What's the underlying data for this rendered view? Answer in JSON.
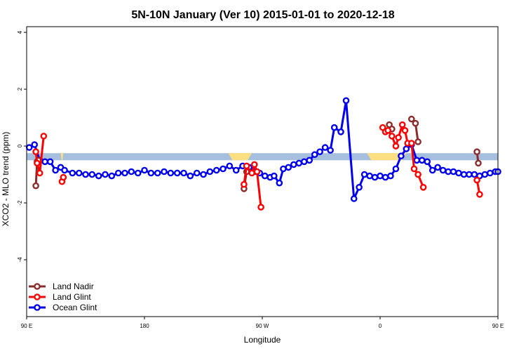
{
  "chart_data": {
    "type": "line",
    "title": "5N-10N January (Ver 10)   2015-01-01 to 2020-12-18",
    "xlabel": "Longitude",
    "ylabel": "XCO2 - MLO trend (ppm)",
    "xlim": [
      90,
      450
    ],
    "ylim": [
      -6,
      4.2
    ],
    "xticks": [
      {
        "value": 90,
        "label": "90 E"
      },
      {
        "value": 180,
        "label": "180"
      },
      {
        "value": 270,
        "label": "90 W"
      },
      {
        "value": 360,
        "label": "0"
      },
      {
        "value": 450,
        "label": "90 E"
      },
      {
        "value": 540,
        "label": "180"
      }
    ],
    "yticks": [
      {
        "value": 4,
        "label": "4"
      },
      {
        "value": 2,
        "label": "2"
      },
      {
        "value": 0,
        "label": "0"
      },
      {
        "value": -2,
        "label": "-2"
      },
      {
        "value": -4,
        "label": "-4"
      }
    ],
    "grid": false,
    "legend_position": "bottom-left",
    "land_band": {
      "y_range": [
        -0.5,
        -0.25
      ],
      "color": "#a7bfde",
      "land_color": "#fcdf80",
      "land_segments": [
        [
          116,
          118
        ],
        [
          244,
          262
        ],
        [
          350,
          380
        ],
        [
          490,
          492
        ]
      ]
    },
    "series": [
      {
        "name": "Land Nadir",
        "color": "#8b2c2c",
        "segments": [
          [
            [
              97,
              -1.4
            ],
            [
              98,
              -0.55
            ],
            [
              99,
              -0.5
            ]
          ],
          [
            [
              256,
              -1.5
            ],
            [
              258,
              -0.9
            ]
          ],
          [
            [
              367,
              0.75
            ],
            [
              369,
              0.6
            ]
          ],
          [
            [
              384,
              0.95
            ],
            [
              387,
              0.8
            ],
            [
              389,
              0.15
            ]
          ],
          [
            [
              434,
              -0.2
            ],
            [
              435,
              -0.6
            ]
          ],
          [
            [
              458,
              -1.4
            ],
            [
              460,
              -0.5
            ]
          ],
          [
            [
              474,
              -0.3
            ],
            [
              476,
              -0.9
            ]
          ]
        ]
      },
      {
        "name": "Land Glint",
        "color": "#ff0000",
        "segments": [
          [
            [
              97,
              -0.2
            ],
            [
              98,
              -0.6
            ],
            [
              100,
              -0.95
            ],
            [
              103,
              0.35
            ]
          ],
          [
            [
              117,
              -1.25
            ],
            [
              118,
              -1.1
            ]
          ],
          [
            [
              256,
              -1.35
            ],
            [
              258,
              -0.7
            ],
            [
              262,
              -0.95
            ],
            [
              264,
              -0.65
            ],
            [
              266,
              -0.9
            ],
            [
              269,
              -2.15
            ]
          ],
          [
            [
              362,
              0.65
            ],
            [
              364,
              0.5
            ],
            [
              366,
              0.55
            ],
            [
              369,
              0.35
            ],
            [
              372,
              0.0
            ],
            [
              374,
              0.3
            ],
            [
              377,
              0.75
            ],
            [
              379,
              0.55
            ],
            [
              381,
              0.1
            ],
            [
              384,
              0.1
            ],
            [
              386,
              -0.8
            ],
            [
              389,
              -1.0
            ],
            [
              393,
              -1.45
            ]
          ],
          [
            [
              434,
              -1.2
            ],
            [
              436,
              -1.7
            ]
          ],
          [
            [
              459,
              -0.2
            ],
            [
              461,
              -1.0
            ],
            [
              463,
              0.35
            ]
          ],
          [
            [
              475,
              -1.25
            ],
            [
              477,
              -1.1
            ]
          ]
        ]
      },
      {
        "name": "Ocean Glint",
        "color": "#0000ee",
        "segments": [
          [
            [
              92,
              -0.05
            ],
            [
              96,
              0.05
            ],
            [
              100,
              -0.5
            ],
            [
              104,
              -0.55
            ],
            [
              108,
              -0.55
            ],
            [
              112,
              -0.85
            ],
            [
              116,
              -0.75
            ],
            [
              119,
              -0.85
            ],
            [
              125,
              -0.95
            ],
            [
              130,
              -0.95
            ],
            [
              135,
              -1.0
            ],
            [
              140,
              -1.0
            ],
            [
              145,
              -1.05
            ],
            [
              150,
              -1.0
            ],
            [
              155,
              -1.05
            ],
            [
              160,
              -0.95
            ],
            [
              165,
              -0.95
            ],
            [
              170,
              -0.9
            ],
            [
              175,
              -0.95
            ],
            [
              180,
              -0.85
            ],
            [
              185,
              -0.95
            ],
            [
              190,
              -0.95
            ],
            [
              195,
              -0.9
            ],
            [
              200,
              -0.95
            ],
            [
              205,
              -0.95
            ],
            [
              210,
              -0.95
            ],
            [
              215,
              -1.05
            ],
            [
              220,
              -0.95
            ],
            [
              225,
              -1.0
            ],
            [
              230,
              -0.9
            ],
            [
              235,
              -0.85
            ],
            [
              240,
              -0.8
            ],
            [
              245,
              -0.7
            ],
            [
              250,
              -0.85
            ],
            [
              255,
              -0.7
            ],
            [
              260,
              -0.75
            ],
            [
              264,
              -0.9
            ],
            [
              268,
              -0.95
            ],
            [
              272,
              -1.05
            ],
            [
              276,
              -1.1
            ],
            [
              279,
              -1.05
            ],
            [
              283,
              -1.3
            ],
            [
              286,
              -0.8
            ],
            [
              290,
              -0.75
            ],
            [
              294,
              -0.65
            ],
            [
              298,
              -0.6
            ],
            [
              302,
              -0.55
            ],
            [
              306,
              -0.5
            ],
            [
              310,
              -0.3
            ],
            [
              314,
              -0.2
            ],
            [
              318,
              -0.05
            ],
            [
              322,
              -0.15
            ],
            [
              325,
              0.65
            ],
            [
              330,
              0.5
            ],
            [
              334,
              1.6
            ],
            [
              340,
              -1.85
            ],
            [
              344,
              -1.45
            ],
            [
              348,
              -1.0
            ],
            [
              352,
              -1.05
            ],
            [
              356,
              -1.1
            ],
            [
              360,
              -1.05
            ],
            [
              364,
              -1.1
            ],
            [
              368,
              -1.05
            ],
            [
              372,
              -0.8
            ],
            [
              376,
              -0.35
            ],
            [
              380,
              -0.1
            ],
            [
              384,
              0.05
            ],
            [
              388,
              -0.5
            ],
            [
              392,
              -0.5
            ],
            [
              396,
              -0.55
            ],
            [
              400,
              -0.85
            ],
            [
              404,
              -0.75
            ],
            [
              408,
              -0.85
            ],
            [
              412,
              -0.9
            ],
            [
              416,
              -0.9
            ],
            [
              420,
              -0.95
            ],
            [
              424,
              -1.0
            ],
            [
              428,
              -1.0
            ],
            [
              432,
              -1.0
            ],
            [
              436,
              -1.05
            ],
            [
              440,
              -1.0
            ],
            [
              444,
              -0.95
            ],
            [
              448,
              -0.9
            ],
            [
              450,
              -0.9
            ]
          ]
        ]
      }
    ]
  }
}
